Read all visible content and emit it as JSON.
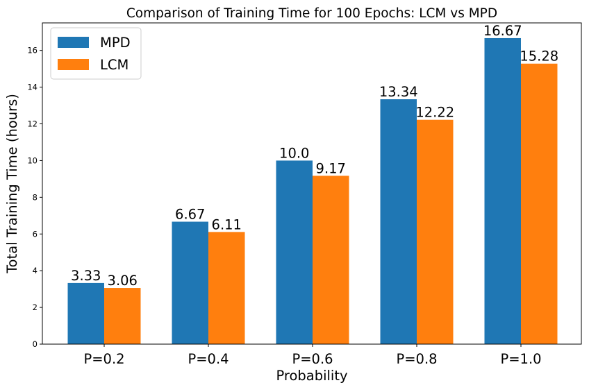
{
  "chart_data": {
    "type": "bar",
    "title": "Comparison of Training Time for 100 Epochs: LCM vs MPD",
    "xlabel": "Probability",
    "ylabel": "Total Training Time (hours)",
    "categories": [
      "P=0.2",
      "P=0.4",
      "P=0.6",
      "P=0.8",
      "P=1.0"
    ],
    "series": [
      {
        "name": "MPD",
        "color": "#1f77b4",
        "values": [
          3.33,
          6.67,
          10.0,
          13.34,
          16.67
        ],
        "labels": [
          "3.33",
          "6.67",
          "10.0",
          "13.34",
          "16.67"
        ]
      },
      {
        "name": "LCM",
        "color": "#ff7f0e",
        "values": [
          3.06,
          6.11,
          9.17,
          12.22,
          15.28
        ],
        "labels": [
          "3.06",
          "6.11",
          "9.17",
          "12.22",
          "15.28"
        ]
      }
    ],
    "ylim": [
      0,
      17.5
    ],
    "yticks": [
      0,
      2,
      4,
      6,
      8,
      10,
      12,
      14,
      16
    ],
    "grid": false,
    "legend": "top-left"
  }
}
